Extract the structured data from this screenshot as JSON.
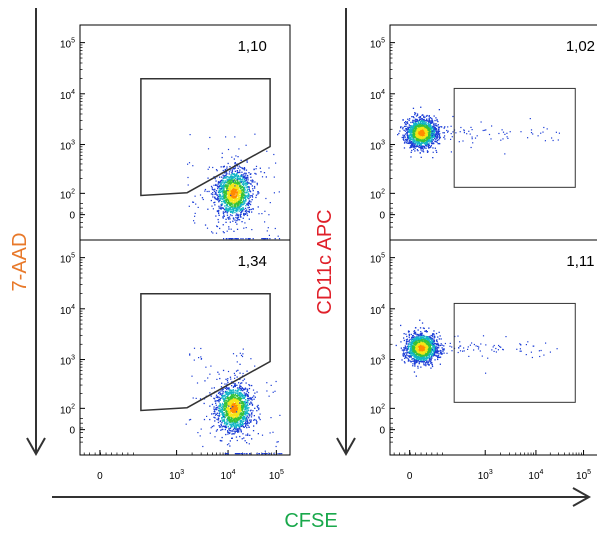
{
  "axis_labels": {
    "left_y": "7-AAD",
    "right_y": "CD11c APC",
    "x": "CFSE"
  },
  "colors": {
    "left_y_label": "#e8792a",
    "right_y_label": "#e0202a",
    "x_label": "#19a84b",
    "arrow": "#333333",
    "frame": "#000000",
    "gate": "#333333"
  },
  "chart_data": [
    {
      "type": "scatter",
      "panel": "left-top",
      "scale": "biexponential",
      "ytick_labels": [
        "10^5",
        "10^4",
        "10^3",
        "10^2",
        "0"
      ],
      "xtick_labels": [],
      "gate": "polygon",
      "gate_percent": "1,10",
      "population": {
        "x_center": "10^4",
        "y_center": "10^2"
      }
    },
    {
      "type": "scatter",
      "panel": "left-bottom",
      "scale": "biexponential",
      "ytick_labels": [
        "10^5",
        "10^4",
        "10^3",
        "10^2",
        "0"
      ],
      "xtick_labels": [
        "0",
        "10^3",
        "10^4",
        "10^5"
      ],
      "gate": "polygon",
      "gate_percent": "1,34",
      "population": {
        "x_center": "10^4",
        "y_center": "10^2"
      }
    },
    {
      "type": "scatter",
      "panel": "right-top",
      "scale": "biexponential",
      "ytick_labels": [
        "10^5",
        "10^4",
        "10^3",
        "10^2",
        "0"
      ],
      "xtick_labels": [],
      "gate": "rectangle",
      "gate_percent": "1,02",
      "population": {
        "x_center": "0",
        "y_center": "10^3"
      }
    },
    {
      "type": "scatter",
      "panel": "right-bottom",
      "scale": "biexponential",
      "ytick_labels": [
        "10^5",
        "10^4",
        "10^3",
        "10^2",
        "0"
      ],
      "xtick_labels": [
        "0",
        "10^3",
        "10^4",
        "10^5"
      ],
      "gate": "rectangle",
      "gate_percent": "1,11",
      "population": {
        "x_center": "0",
        "y_center": "10^3"
      }
    }
  ]
}
